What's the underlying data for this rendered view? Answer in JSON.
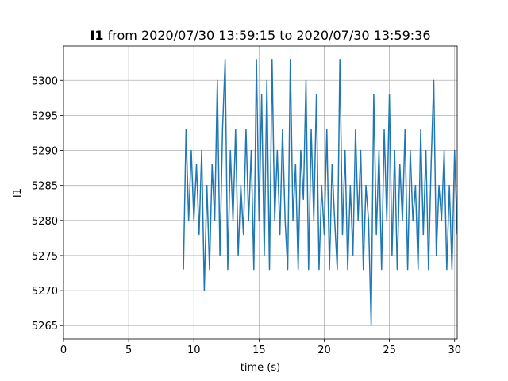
{
  "chart_data": {
    "type": "line",
    "title_parts": [
      "I1",
      "from 2020/07/30 13:59:15 to 2020/07/30 13:59:36"
    ],
    "xlabel": "time (s)",
    "ylabel": "I1",
    "xlim": [
      0,
      30.2
    ],
    "ylim": [
      5263.1,
      5304.9
    ],
    "xticks": [
      0,
      5,
      10,
      15,
      20,
      25,
      30
    ],
    "yticks": [
      5265,
      5270,
      5275,
      5280,
      5285,
      5290,
      5295,
      5300
    ],
    "grid": true,
    "x": [
      9.2,
      9.4,
      9.6,
      9.8,
      10.0,
      10.2,
      10.4,
      10.6,
      10.8,
      11.0,
      11.2,
      11.4,
      11.6,
      11.8,
      12.0,
      12.2,
      12.4,
      12.6,
      12.8,
      13.0,
      13.2,
      13.4,
      13.6,
      13.8,
      14.0,
      14.2,
      14.4,
      14.6,
      14.8,
      15.0,
      15.2,
      15.4,
      15.6,
      15.8,
      16.0,
      16.2,
      16.4,
      16.6,
      16.8,
      17.0,
      17.2,
      17.4,
      17.6,
      17.8,
      18.0,
      18.2,
      18.4,
      18.6,
      18.8,
      19.0,
      19.2,
      19.4,
      19.6,
      19.8,
      20.0,
      20.2,
      20.4,
      20.6,
      20.8,
      21.0,
      21.2,
      21.4,
      21.6,
      21.8,
      22.0,
      22.2,
      22.4,
      22.6,
      22.8,
      23.0,
      23.2,
      23.4,
      23.6,
      23.8,
      24.0,
      24.2,
      24.4,
      24.6,
      24.8,
      25.0,
      25.2,
      25.4,
      25.6,
      25.8,
      26.0,
      26.2,
      26.4,
      26.6,
      26.8,
      27.0,
      27.2,
      27.4,
      27.6,
      27.8,
      28.0,
      28.2,
      28.4,
      28.6,
      28.8,
      29.0,
      29.2,
      29.4,
      29.6,
      29.8,
      30.0,
      30.2
    ],
    "series": [
      {
        "color": "#1f77b4",
        "values": [
          5273,
          5293,
          5280,
          5290,
          5280,
          5288,
          5278,
          5290,
          5270,
          5285,
          5273,
          5288,
          5280,
          5300,
          5275,
          5293,
          5303,
          5273,
          5290,
          5280,
          5293,
          5275,
          5285,
          5278,
          5293,
          5280,
          5290,
          5273,
          5303,
          5280,
          5298,
          5275,
          5300,
          5273,
          5303,
          5280,
          5290,
          5278,
          5293,
          5280,
          5273,
          5303,
          5280,
          5288,
          5273,
          5290,
          5283,
          5300,
          5273,
          5293,
          5280,
          5298,
          5273,
          5285,
          5278,
          5293,
          5273,
          5288,
          5280,
          5273,
          5303,
          5278,
          5290,
          5273,
          5285,
          5275,
          5293,
          5280,
          5290,
          5273,
          5285,
          5280,
          5265,
          5298,
          5278,
          5290,
          5273,
          5293,
          5280,
          5298,
          5275,
          5290,
          5273,
          5288,
          5280,
          5293,
          5273,
          5290,
          5280,
          5285,
          5273,
          5293,
          5278,
          5290,
          5273,
          5288,
          5300,
          5275,
          5285,
          5280,
          5290,
          5273,
          5285,
          5273,
          5290,
          5278
        ]
      }
    ]
  }
}
